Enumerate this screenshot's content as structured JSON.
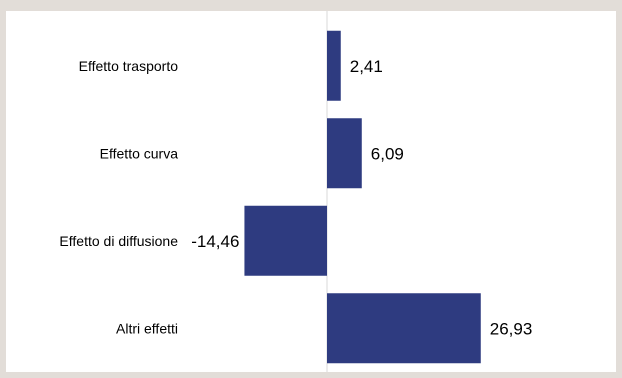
{
  "chart_data": {
    "type": "bar",
    "orientation": "horizontal",
    "categories": [
      "Effetto trasporto",
      "Effetto curva",
      "Effetto di diffusione",
      "Altri effetti"
    ],
    "values": [
      2.41,
      6.09,
      -14.46,
      26.93
    ],
    "value_labels": [
      "2,41",
      "6,09",
      "-14,46",
      "26,93"
    ],
    "title": "",
    "xlabel": "",
    "ylabel": "",
    "xlim": [
      -15,
      27
    ],
    "grid": false,
    "legend": "none",
    "bar_color": "#2e3b80",
    "axis_color": "#d9d9d9"
  }
}
